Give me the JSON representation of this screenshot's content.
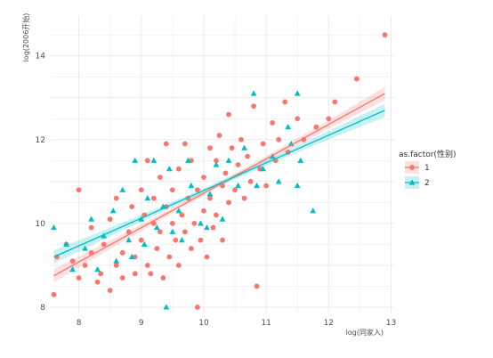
{
  "chart_data": {
    "type": "scatter",
    "xlabel": "log(同家入)",
    "ylabel": "log(2006开始)",
    "xlim": [
      7.55,
      13.05
    ],
    "ylim": [
      7.85,
      14.95
    ],
    "x_ticks": [
      8,
      9,
      10,
      11,
      12,
      13
    ],
    "y_ticks": [
      8,
      10,
      12,
      14
    ],
    "grid": true,
    "legend": {
      "title": "as.factor(性别)",
      "position": "right",
      "entries": [
        "1",
        "2"
      ]
    },
    "series": [
      {
        "name": "1",
        "marker": "circle",
        "color": "#F8766D",
        "fit": {
          "x": [
            7.6,
            12.9
          ],
          "y": [
            8.75,
            13.1
          ]
        },
        "points": [
          {
            "x": 7.6,
            "y": 8.3
          },
          {
            "x": 7.65,
            "y": 9.2
          },
          {
            "x": 7.8,
            "y": 9.5
          },
          {
            "x": 7.9,
            "y": 9.1
          },
          {
            "x": 8.0,
            "y": 10.8
          },
          {
            "x": 8.0,
            "y": 8.7
          },
          {
            "x": 8.1,
            "y": 9.0
          },
          {
            "x": 8.2,
            "y": 9.3
          },
          {
            "x": 8.2,
            "y": 9.9
          },
          {
            "x": 8.3,
            "y": 8.6
          },
          {
            "x": 8.35,
            "y": 8.8
          },
          {
            "x": 8.4,
            "y": 9.5
          },
          {
            "x": 8.5,
            "y": 8.4
          },
          {
            "x": 8.5,
            "y": 10.1
          },
          {
            "x": 8.6,
            "y": 9.0
          },
          {
            "x": 8.6,
            "y": 10.6
          },
          {
            "x": 8.7,
            "y": 9.3
          },
          {
            "x": 8.7,
            "y": 8.7
          },
          {
            "x": 8.8,
            "y": 9.8
          },
          {
            "x": 8.85,
            "y": 10.4
          },
          {
            "x": 8.9,
            "y": 9.2
          },
          {
            "x": 8.9,
            "y": 8.8
          },
          {
            "x": 9.0,
            "y": 10.8
          },
          {
            "x": 9.0,
            "y": 9.6
          },
          {
            "x": 9.05,
            "y": 10.2
          },
          {
            "x": 9.1,
            "y": 9.0
          },
          {
            "x": 9.1,
            "y": 11.5
          },
          {
            "x": 9.15,
            "y": 8.8
          },
          {
            "x": 9.2,
            "y": 10.0
          },
          {
            "x": 9.2,
            "y": 10.6
          },
          {
            "x": 9.25,
            "y": 9.4
          },
          {
            "x": 9.3,
            "y": 11.1
          },
          {
            "x": 9.3,
            "y": 9.8
          },
          {
            "x": 9.35,
            "y": 8.7
          },
          {
            "x": 9.4,
            "y": 10.4
          },
          {
            "x": 9.4,
            "y": 11.9
          },
          {
            "x": 9.45,
            "y": 9.2
          },
          {
            "x": 9.5,
            "y": 10.0
          },
          {
            "x": 9.5,
            "y": 10.8
          },
          {
            "x": 9.55,
            "y": 9.6
          },
          {
            "x": 9.6,
            "y": 11.3
          },
          {
            "x": 9.6,
            "y": 9.0
          },
          {
            "x": 9.65,
            "y": 10.2
          },
          {
            "x": 9.7,
            "y": 11.9
          },
          {
            "x": 9.7,
            "y": 9.8
          },
          {
            "x": 9.75,
            "y": 10.6
          },
          {
            "x": 9.8,
            "y": 9.4
          },
          {
            "x": 9.8,
            "y": 11.5
          },
          {
            "x": 9.85,
            "y": 10.0
          },
          {
            "x": 9.9,
            "y": 8.0
          },
          {
            "x": 9.9,
            "y": 10.8
          },
          {
            "x": 9.95,
            "y": 9.6
          },
          {
            "x": 10.0,
            "y": 11.1
          },
          {
            "x": 10.0,
            "y": 10.3
          },
          {
            "x": 10.05,
            "y": 9.2
          },
          {
            "x": 10.1,
            "y": 11.8
          },
          {
            "x": 10.1,
            "y": 10.6
          },
          {
            "x": 10.15,
            "y": 9.9
          },
          {
            "x": 10.2,
            "y": 11.5
          },
          {
            "x": 10.2,
            "y": 10.2
          },
          {
            "x": 10.25,
            "y": 12.1
          },
          {
            "x": 10.3,
            "y": 10.9
          },
          {
            "x": 10.3,
            "y": 9.6
          },
          {
            "x": 10.35,
            "y": 11.2
          },
          {
            "x": 10.4,
            "y": 12.6
          },
          {
            "x": 10.4,
            "y": 10.5
          },
          {
            "x": 10.45,
            "y": 11.8
          },
          {
            "x": 10.5,
            "y": 10.8
          },
          {
            "x": 10.55,
            "y": 11.4
          },
          {
            "x": 10.6,
            "y": 12.0
          },
          {
            "x": 10.65,
            "y": 10.6
          },
          {
            "x": 10.7,
            "y": 11.6
          },
          {
            "x": 10.75,
            "y": 11.0
          },
          {
            "x": 10.8,
            "y": 12.8
          },
          {
            "x": 10.85,
            "y": 8.5
          },
          {
            "x": 10.9,
            "y": 11.3
          },
          {
            "x": 10.95,
            "y": 11.9
          },
          {
            "x": 11.0,
            "y": 10.9
          },
          {
            "x": 11.1,
            "y": 12.4
          },
          {
            "x": 11.15,
            "y": 11.5
          },
          {
            "x": 11.2,
            "y": 12.0
          },
          {
            "x": 11.3,
            "y": 12.9
          },
          {
            "x": 11.35,
            "y": 11.7
          },
          {
            "x": 11.5,
            "y": 12.5
          },
          {
            "x": 11.6,
            "y": 12.0
          },
          {
            "x": 11.8,
            "y": 12.3
          },
          {
            "x": 12.0,
            "y": 12.5
          },
          {
            "x": 12.1,
            "y": 12.9
          },
          {
            "x": 12.45,
            "y": 13.45
          },
          {
            "x": 12.9,
            "y": 14.5
          }
        ]
      },
      {
        "name": "2",
        "marker": "triangle",
        "color": "#00BFC4",
        "fit": {
          "x": [
            7.6,
            12.9
          ],
          "y": [
            9.2,
            12.7
          ]
        },
        "points": [
          {
            "x": 7.6,
            "y": 9.9
          },
          {
            "x": 7.8,
            "y": 9.5
          },
          {
            "x": 7.9,
            "y": 8.9
          },
          {
            "x": 8.1,
            "y": 9.4
          },
          {
            "x": 8.2,
            "y": 10.1
          },
          {
            "x": 8.3,
            "y": 8.9
          },
          {
            "x": 8.4,
            "y": 9.7
          },
          {
            "x": 8.55,
            "y": 10.3
          },
          {
            "x": 8.6,
            "y": 9.1
          },
          {
            "x": 8.7,
            "y": 10.8
          },
          {
            "x": 8.8,
            "y": 9.6
          },
          {
            "x": 8.85,
            "y": 9.2
          },
          {
            "x": 8.9,
            "y": 11.5
          },
          {
            "x": 9.0,
            "y": 10.1
          },
          {
            "x": 9.05,
            "y": 9.5
          },
          {
            "x": 9.1,
            "y": 10.6
          },
          {
            "x": 9.2,
            "y": 11.5
          },
          {
            "x": 9.25,
            "y": 9.9
          },
          {
            "x": 9.35,
            "y": 10.4
          },
          {
            "x": 9.4,
            "y": 8.0
          },
          {
            "x": 9.45,
            "y": 11.3
          },
          {
            "x": 9.5,
            "y": 9.8
          },
          {
            "x": 9.6,
            "y": 10.3
          },
          {
            "x": 9.65,
            "y": 9.6
          },
          {
            "x": 9.75,
            "y": 11.5
          },
          {
            "x": 9.8,
            "y": 10.9
          },
          {
            "x": 9.95,
            "y": 10.0
          },
          {
            "x": 10.05,
            "y": 9.9
          },
          {
            "x": 10.1,
            "y": 10.7
          },
          {
            "x": 10.2,
            "y": 11.4
          },
          {
            "x": 10.3,
            "y": 10.1
          },
          {
            "x": 10.4,
            "y": 11.5
          },
          {
            "x": 10.55,
            "y": 10.9
          },
          {
            "x": 10.65,
            "y": 11.8
          },
          {
            "x": 10.8,
            "y": 13.1
          },
          {
            "x": 10.85,
            "y": 10.9
          },
          {
            "x": 10.95,
            "y": 11.3
          },
          {
            "x": 11.1,
            "y": 11.6
          },
          {
            "x": 11.2,
            "y": 11.0
          },
          {
            "x": 11.35,
            "y": 12.3
          },
          {
            "x": 11.4,
            "y": 11.9
          },
          {
            "x": 11.5,
            "y": 13.1
          },
          {
            "x": 11.5,
            "y": 10.9
          },
          {
            "x": 11.55,
            "y": 11.5
          },
          {
            "x": 11.75,
            "y": 10.3
          }
        ]
      }
    ]
  }
}
